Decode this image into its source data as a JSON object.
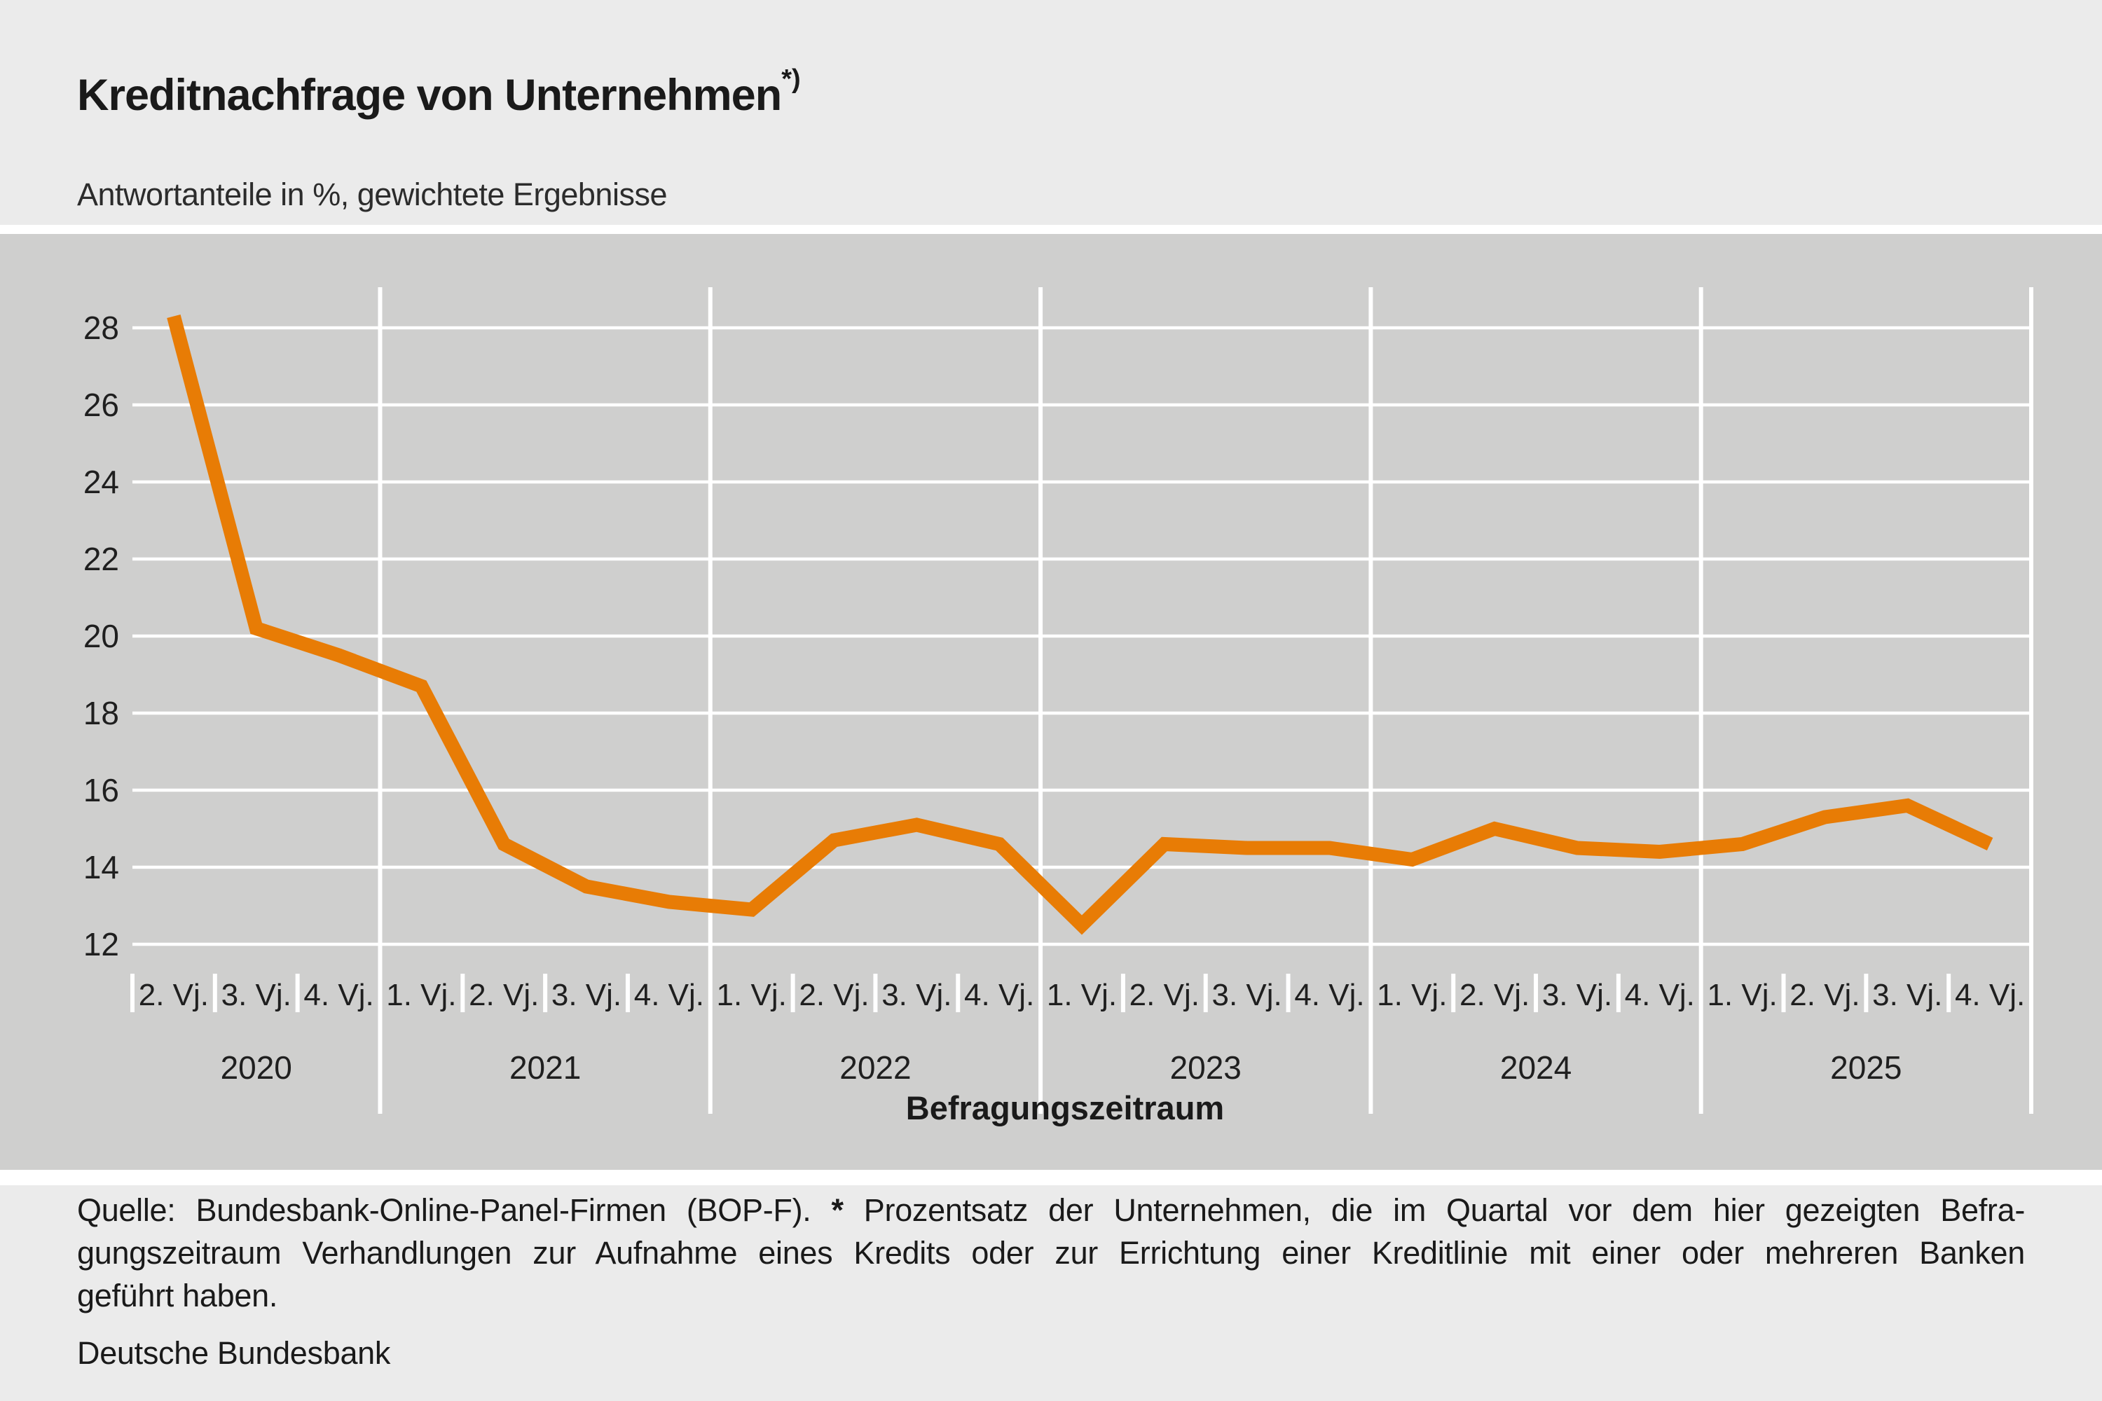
{
  "header": {
    "title": "Kreditnachfrage von Unternehmen",
    "title_note": "*)",
    "subtitle": "Antwortanteile in %, gewichtete Ergebnisse"
  },
  "chart_data": {
    "type": "line",
    "title": "Kreditnachfrage von Unternehmen",
    "subtitle": "Antwortanteile in %, gewichtete Ergebnisse",
    "xlabel": "Befragungszeitraum",
    "ylabel": "",
    "ylim": [
      12,
      28
    ],
    "yticks": [
      28,
      26,
      24,
      22,
      20,
      18,
      16,
      14,
      12
    ],
    "grid": true,
    "legend": "none",
    "line_color": "#e87c05",
    "years": [
      {
        "label": "2020",
        "quarters": [
          "2. Vj.",
          "3. Vj.",
          "4. Vj."
        ],
        "values": [
          28.3,
          20.2,
          19.5
        ]
      },
      {
        "label": "2021",
        "quarters": [
          "1. Vj.",
          "2. Vj.",
          "3. Vj.",
          "4. Vj."
        ],
        "values": [
          18.7,
          14.6,
          13.5,
          13.1
        ]
      },
      {
        "label": "2022",
        "quarters": [
          "1. Vj.",
          "2. Vj.",
          "3. Vj.",
          "4. Vj."
        ],
        "values": [
          12.9,
          14.7,
          15.1,
          14.6
        ]
      },
      {
        "label": "2023",
        "quarters": [
          "1. Vj.",
          "2. Vj.",
          "3. Vj.",
          "4. Vj."
        ],
        "values": [
          12.5,
          14.6,
          14.5,
          14.5
        ]
      },
      {
        "label": "2024",
        "quarters": [
          "1. Vj.",
          "2. Vj.",
          "3. Vj.",
          "4. Vj."
        ],
        "values": [
          14.2,
          15.0,
          14.5,
          14.4
        ]
      },
      {
        "label": "2025",
        "quarters": [
          "1. Vj.",
          "2. Vj.",
          "3. Vj.",
          "4. Vj."
        ],
        "values": [
          14.6,
          15.3,
          15.6,
          14.6
        ]
      }
    ]
  },
  "footer": {
    "source_line1_pre": "Quelle: Bundesbank-Online-Panel-Firmen (BOP-F).",
    "source_star": "*",
    "source_line1_post": "Prozentsatz der Unternehmen, die im Quartal vor dem hier gezeigten Befra-",
    "source_line2": "gungszeitraum Verhandlungen zur Aufnahme eines Kredits oder zur Errichtung einer Kreditlinie mit einer oder mehreren Banken",
    "source_line3": "geführt haben.",
    "publisher": "Deutsche Bundesbank"
  },
  "colors": {
    "accent_orange": "#e87c05",
    "band_bg": "#cfcfce",
    "page_bg": "#ebebeb",
    "grid_white": "#ffffff",
    "text": "#1a1a1a"
  }
}
